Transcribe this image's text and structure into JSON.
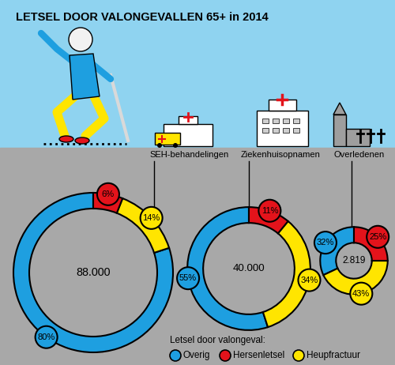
{
  "title": "LETSEL DOOR VALONGEVALLEN 65+ in 2014",
  "legend_title": "Letsel door valongeval:",
  "categories": [
    "Overig",
    "Hersenletsel",
    "Heupfractuur"
  ],
  "colors": [
    "#1e9fe0",
    "#e3131b",
    "#ffe500"
  ],
  "chart_data": [
    {
      "type": "pie",
      "title": "SEH-behandelingen",
      "total": 88000,
      "total_label": "88.000",
      "values": [
        80,
        6,
        14
      ],
      "value_labels": [
        "80%",
        "6%",
        "14%"
      ]
    },
    {
      "type": "pie",
      "title": "Ziekenhuisopnamen",
      "total": 40000,
      "total_label": "40.000",
      "values": [
        55,
        11,
        34
      ],
      "value_labels": [
        "55%",
        "11%",
        "34%"
      ]
    },
    {
      "type": "pie",
      "title": "Overledenen",
      "total": 2819,
      "total_label": "2.819",
      "values": [
        32,
        25,
        43
      ],
      "value_labels": [
        "32%",
        "25%",
        "43%"
      ]
    }
  ]
}
